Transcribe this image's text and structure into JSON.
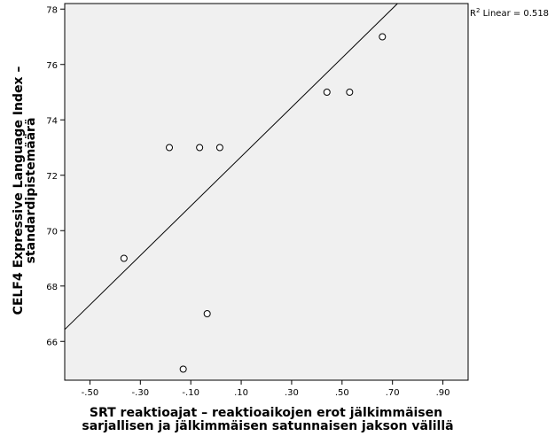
{
  "chart_data": {
    "type": "scatter",
    "xlabel_lines": [
      "SRT reaktioajat –  reaktioaikojen erot jälkimmäisen",
      "sarjallisen ja jälkimmäisen satunnaisen jakson välillä"
    ],
    "ylabel_lines": [
      "CELF4 Expressive Language Index  –",
      "standardipistemäärä"
    ],
    "xlim": [
      -0.6,
      1.0
    ],
    "ylim": [
      64.6,
      78.2
    ],
    "x_ticks": [
      -0.5,
      -0.3,
      -0.1,
      0.1,
      0.3,
      0.5,
      0.7,
      0.9
    ],
    "x_tick_labels": [
      "-.50",
      "-.30",
      "-.10",
      ".10",
      ".30",
      ".50",
      ".70",
      ".90"
    ],
    "y_ticks": [
      66,
      68,
      70,
      72,
      74,
      76,
      78
    ],
    "y_tick_labels": [
      "66",
      "68",
      "70",
      "72",
      "74",
      "76",
      "78"
    ],
    "points": [
      {
        "x": -0.365,
        "y": 69
      },
      {
        "x": -0.185,
        "y": 73
      },
      {
        "x": -0.065,
        "y": 73
      },
      {
        "x": 0.015,
        "y": 73
      },
      {
        "x": -0.035,
        "y": 67
      },
      {
        "x": -0.13,
        "y": 65
      },
      {
        "x": 0.44,
        "y": 75
      },
      {
        "x": 0.53,
        "y": 75
      },
      {
        "x": 0.66,
        "y": 77
      }
    ],
    "fit_line": {
      "x1": -0.6,
      "y1": 66.43,
      "x2": 0.72,
      "y2": 78.2
    },
    "r2_label": "R",
    "r2_sup": "2",
    "r2_text": " Linear = 0.518",
    "colors": {
      "plot_bg": "#f0f0f0",
      "frame": "#000000",
      "marker_fill": "#ffffff",
      "marker_stroke": "#000000"
    }
  }
}
